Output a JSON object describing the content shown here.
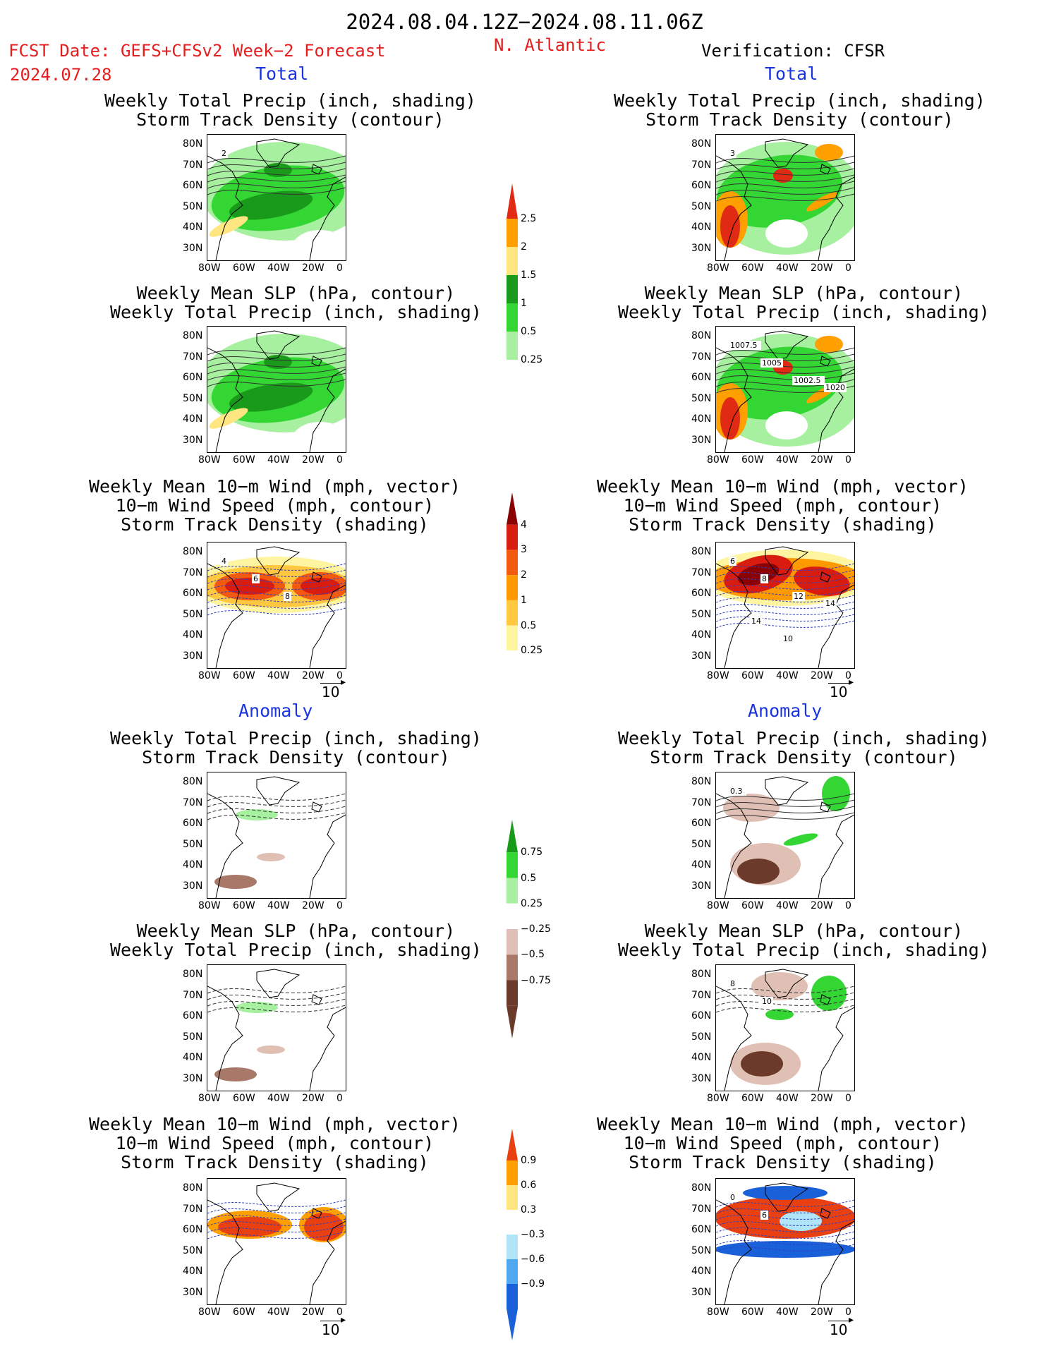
{
  "header": {
    "period": "2024.08.04.12Z−2024.08.11.06Z",
    "region": "N. Atlantic",
    "fcst_label": "FCST Date: GEFS+CFSv2 Week−2 Forecast",
    "fcst_date": "2024.07.28",
    "verification": "Verification: CFSR"
  },
  "sections": {
    "total": "Total",
    "anomaly": "Anomaly"
  },
  "panel_titles": {
    "precip_track": [
      "Weekly Total Precip (inch, shading)",
      "Storm Track Density (contour)"
    ],
    "slp_precip": [
      "Weekly Mean SLP (hPa, contour)",
      "Weekly Total Precip (inch, shading)"
    ],
    "wind_track": [
      "Weekly Mean 10−m Wind (mph, vector)",
      "10−m Wind Speed (mph, contour)",
      "Storm Track Density (shading)"
    ]
  },
  "axes": {
    "lat_labels": [
      "80N",
      "70N",
      "60N",
      "50N",
      "40N",
      "30N"
    ],
    "lon_labels": [
      "80W",
      "60W",
      "40W",
      "20W",
      "0"
    ]
  },
  "vector_ref": "10",
  "contour_labels": {
    "fc_precip_track": [
      "2"
    ],
    "ob_precip_track": [
      "3"
    ],
    "ob_slp_precip": [
      "1007.5",
      "1005",
      "1002.5",
      "1020"
    ],
    "fc_wind_track": [
      "4",
      "6",
      "8"
    ],
    "ob_wind_track": [
      "6",
      "8",
      "12",
      "14",
      "14",
      "10"
    ],
    "ob_anom_precip_track": [
      "0.3"
    ],
    "ob_anom_slp": [
      "8",
      "10"
    ],
    "ob_anom_wind": [
      "0",
      "6"
    ]
  },
  "colorbars": {
    "precip": {
      "labels": [
        "2.5",
        "2",
        "1.5",
        "1",
        "0.5",
        "0.25"
      ],
      "colors": [
        "#e02a14",
        "#ff9f00",
        "#ffe680",
        "#1a9a1a",
        "#33d633",
        "#a6f0a0"
      ]
    },
    "track": {
      "labels": [
        "4",
        "3",
        "2",
        "1",
        "0.5",
        "0.25"
      ],
      "colors": [
        "#8b0000",
        "#d91c10",
        "#f25a10",
        "#ff9900",
        "#ffc840",
        "#fff5a0"
      ]
    },
    "precip_anom": {
      "labels": [
        "0.75",
        "0.5",
        "0.25",
        "−0.25",
        "−0.5",
        "−0.75"
      ],
      "colors": [
        "#179a17",
        "#33d633",
        "#a6f0a0",
        "#ffffff",
        "#e0c0b4",
        "#a87868",
        "#6b3a2a"
      ]
    },
    "track_anom": {
      "labels": [
        "0.9",
        "0.6",
        "0.3",
        "−0.3",
        "−0.6",
        "−0.9"
      ],
      "colors": [
        "#e84010",
        "#ff9f00",
        "#ffe680",
        "#ffffff",
        "#b0e4f8",
        "#50a8f0",
        "#1a60d8"
      ]
    }
  }
}
